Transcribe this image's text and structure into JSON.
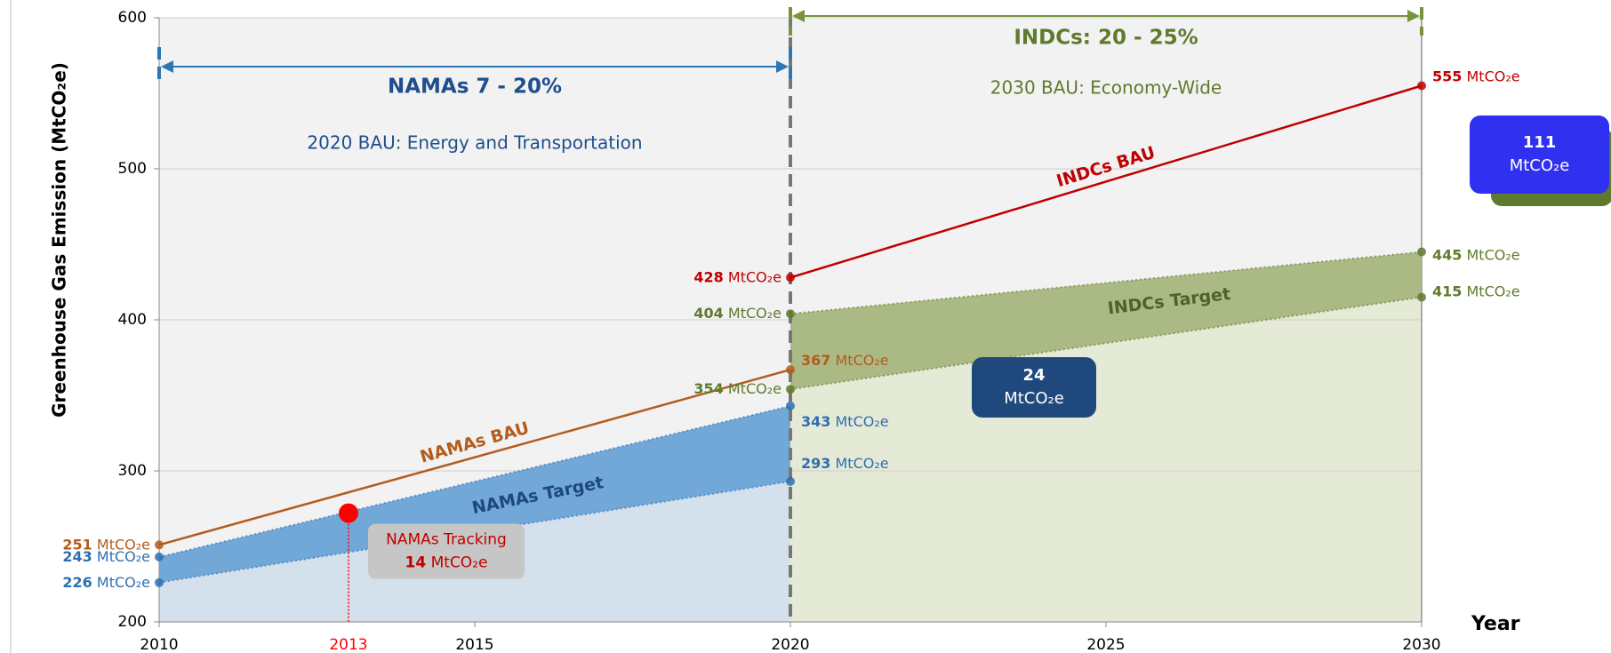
{
  "chart_data": {
    "type": "line",
    "y_label": "Greenhouse Gas Emission (MtCO₂e)",
    "x_label": "Year",
    "xlim": [
      2010,
      2030
    ],
    "xticks": [
      2010,
      2015,
      2020,
      2025,
      2030
    ],
    "ylim": [
      200,
      600
    ],
    "yticks": [
      200,
      300,
      400,
      500,
      600
    ],
    "grid": true,
    "series": [
      {
        "name": "NAMAs BAU",
        "color": "#b35c1e",
        "x": [
          2010,
          2020
        ],
        "values": [
          251,
          367
        ],
        "value_labels": [
          "251 MtCO₂e",
          "367 MtCO₂e"
        ]
      },
      {
        "name": "NAMAs Target",
        "color": "#2e6fb0",
        "x": [
          2010,
          2020
        ],
        "values": [
          243,
          343
        ],
        "value_labels": [
          "243 MtCO₂e",
          "343 MtCO₂e"
        ],
        "lower": [
          226,
          293
        ],
        "lower_labels": [
          "226 MtCO₂e",
          "293 MtCO₂e"
        ]
      },
      {
        "name": "INDCs BAU",
        "color": "#c00000",
        "x": [
          2020,
          2030
        ],
        "values": [
          428,
          555
        ],
        "value_labels": [
          "428 MtCO₂e",
          "555 MtCO₂e"
        ]
      },
      {
        "name": "INDCs Target",
        "color": "#5f7a2c",
        "x": [
          2020,
          2030
        ],
        "values": [
          404,
          445
        ],
        "value_labels": [
          "404 MtCO₂e",
          "445 MtCO₂e"
        ],
        "lower": [
          354,
          415
        ],
        "lower_labels": [
          "354 MtCO₂e",
          "415 MtCO₂e"
        ]
      }
    ],
    "periods": [
      {
        "title": "NAMAs 7 - 20%",
        "subtitle": "2020 BAU: Energy and Transportation",
        "x": [
          2010,
          2020
        ],
        "color": "#1f4e8c"
      },
      {
        "title": "INDCs: 20 - 25%",
        "subtitle": "2030 BAU: Economy-Wide",
        "x": [
          2020,
          2030
        ],
        "color": "#5f7a2c"
      }
    ],
    "tracking": {
      "label": "NAMAs Tracking",
      "x": 2013,
      "value": 272,
      "gap_label": "14 MtCO₂e",
      "color": "#ff0000"
    },
    "gaps": [
      {
        "value": 24,
        "label": "24 MtCO₂e",
        "color": "#1f497d"
      },
      {
        "value": 111,
        "label": "111 MtCO₂e",
        "color": "#3030f0"
      }
    ]
  }
}
